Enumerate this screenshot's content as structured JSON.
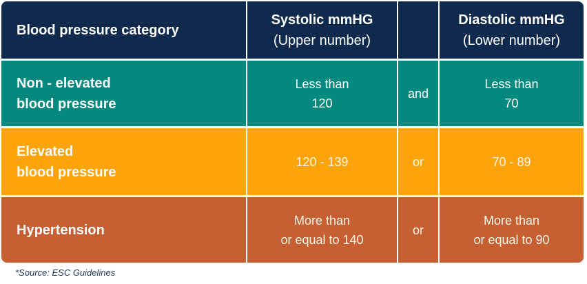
{
  "colors": {
    "header_bg": "#0F2A4C",
    "non_elevated_bg": "#04897F",
    "elevated_bg": "#FCA40A",
    "hypertension_bg": "#C65F32",
    "divider": "#FFFFFF",
    "cell_text": "#FFFFFF",
    "footer_text": "#1E3A5F"
  },
  "header": {
    "category": "Blood pressure category",
    "systolic": {
      "title": "Systolic mmHG",
      "subtitle": "(Upper number)"
    },
    "diastolic": {
      "title": "Diastolic mmHG",
      "subtitle": "(Lower number)"
    }
  },
  "rows": [
    {
      "category": {
        "line1": "Non - elevated",
        "line2": "blood pressure"
      },
      "systolic": {
        "line1": "Less than",
        "line2": "120"
      },
      "conjunction": "and",
      "diastolic": {
        "line1": "Less than",
        "line2": "70"
      }
    },
    {
      "category": {
        "line1": "Elevated",
        "line2": "blood pressure"
      },
      "systolic": {
        "line1": "120 - 139",
        "line2": ""
      },
      "conjunction": "or",
      "diastolic": {
        "line1": "70 - 89",
        "line2": ""
      }
    },
    {
      "category": {
        "line1": "Hypertension",
        "line2": ""
      },
      "systolic": {
        "line1": "More than",
        "line2": "or equal to 140"
      },
      "conjunction": "or",
      "diastolic": {
        "line1": "More than",
        "line2": "or equal to 90"
      }
    }
  ],
  "footer": {
    "source": "*Source: ESC Guidelines"
  },
  "chart_data": {
    "type": "table",
    "columns": [
      "Blood pressure category",
      "Systolic mmHG (Upper number)",
      "",
      "Diastolic mmHG (Lower number)"
    ],
    "rows": [
      [
        "Non - elevated blood pressure",
        "Less than 120",
        "and",
        "Less than 70"
      ],
      [
        "Elevated blood pressure",
        "120 - 139",
        "or",
        "70 - 89"
      ],
      [
        "Hypertension",
        "More than or equal to 140",
        "or",
        "More than or equal to 90"
      ]
    ],
    "note": "*Source: ESC Guidelines"
  }
}
